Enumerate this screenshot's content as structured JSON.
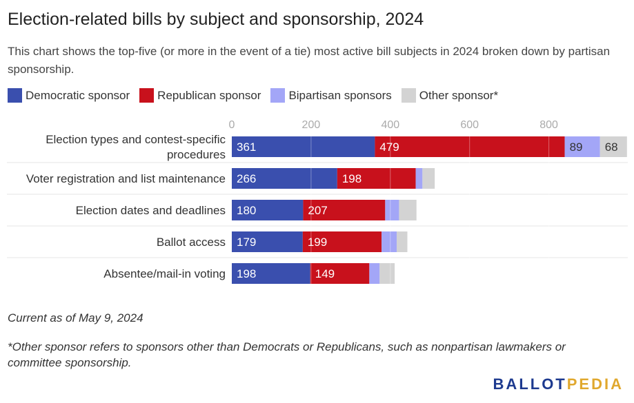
{
  "header": {
    "title": "Election-related bills by subject and sponsorship, 2024",
    "subtitle": "This chart shows the top-five (or more in the event of a tie) most active bill subjects in 2024 broken down by partisan sponsorship."
  },
  "chart_data": {
    "type": "bar",
    "orientation": "horizontal",
    "stacked": true,
    "categories": [
      [
        "Election types and contest-specific",
        "procedures"
      ],
      [
        "Voter registration and list maintenance"
      ],
      [
        "Election dates and deadlines"
      ],
      [
        "Ballot access"
      ],
      [
        "Absentee/mail-in voting"
      ]
    ],
    "series": [
      {
        "name": "Democratic sponsor",
        "color": "#3a4fae",
        "values": [
          361,
          266,
          180,
          179,
          198
        ]
      },
      {
        "name": "Republican sponsor",
        "color": "#c8111c",
        "values": [
          479,
          198,
          207,
          199,
          149
        ]
      },
      {
        "name": "Bipartisan sponsors",
        "color": "#a3a6f7",
        "values": [
          89,
          17,
          35,
          38,
          26
        ]
      },
      {
        "name": "Other sponsor*",
        "color": "#d3d3d3",
        "values": [
          68,
          31,
          44,
          27,
          38
        ]
      }
    ],
    "data_labels": [
      [
        "361",
        "479",
        "89",
        "68"
      ],
      [
        "266",
        "198",
        "",
        ""
      ],
      [
        "180",
        "207",
        "",
        ""
      ],
      [
        "179",
        "199",
        "",
        ""
      ],
      [
        "198",
        "149",
        "",
        ""
      ]
    ],
    "xlim": [
      0,
      1000
    ],
    "xticks": [
      0,
      200,
      400,
      600,
      800
    ],
    "axis_position": "top",
    "grid": true,
    "legend": "top-left"
  },
  "notes": {
    "date": "Current as of May 9, 2024",
    "footnote": "*Other sponsor refers to sponsors other than Democrats or Republicans, such as nonpartisan lawmakers or committee sponsorship."
  },
  "brand": {
    "part1": "BALLOT",
    "part2": "PEDIA",
    "color1": "#1d3a8f",
    "color2": "#e0a82e"
  }
}
